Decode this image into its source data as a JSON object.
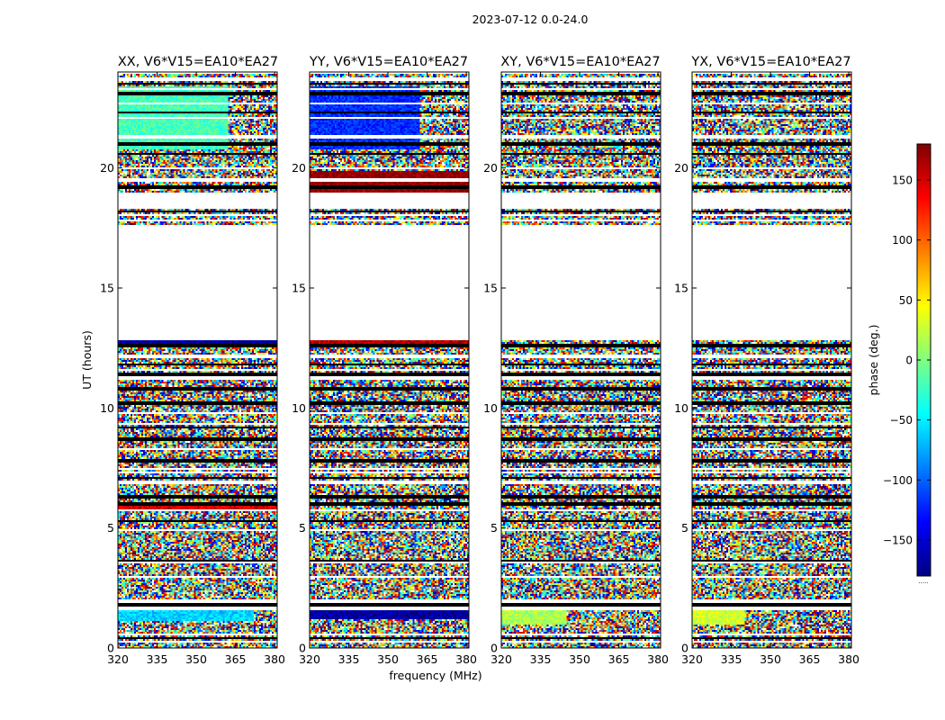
{
  "figure": {
    "title": "2023-07-12 0.0-24.0"
  },
  "chart_data": {
    "type": "heatmap",
    "title": "2023-07-12 0.0-24.0",
    "xlabel": "frequency (MHz)",
    "ylabel": "UT (hours)",
    "xlim": [
      320,
      381
    ],
    "ylim": [
      0,
      24
    ],
    "xticks": [
      320,
      335,
      350,
      365,
      380
    ],
    "yticks": [
      0,
      5,
      10,
      15,
      20
    ],
    "panels": [
      {
        "title": "XX, V6*V15=EA10*EA27",
        "pol": "XX"
      },
      {
        "title": "YY, V6*V15=EA10*EA27",
        "pol": "YY"
      },
      {
        "title": "XY, V6*V15=EA10*EA27",
        "pol": "XY"
      },
      {
        "title": "YX, V6*V15=EA10*EA27",
        "pol": "YX"
      }
    ],
    "colorbar": {
      "label": "phase (deg.)",
      "range": [
        -180,
        180
      ],
      "ticks": [
        -150,
        -100,
        -50,
        0,
        50,
        100,
        150
      ],
      "colormap": "jet",
      "under_label": "....."
    },
    "blank_bands_hours": [
      [
        12.8,
        17.6
      ],
      [
        18.3,
        19.0
      ],
      [
        23.95,
        24.0
      ]
    ],
    "flagged_lines_hours": [
      0.4,
      1.8,
      3.6,
      5.3,
      6.0,
      6.3,
      7.1,
      7.8,
      8.7,
      9.2,
      10.2,
      10.8,
      11.4,
      11.8,
      12.6,
      18.2,
      19.2,
      20.6,
      21.0,
      22.3,
      23.1,
      23.5
    ],
    "white_gaps_hours": [
      0.25,
      0.55,
      1.65,
      1.95,
      2.95,
      3.55,
      4.9,
      5.75,
      6.9,
      7.3,
      7.45,
      8.3,
      9.35,
      9.8,
      11.25,
      11.6,
      12.15,
      17.8,
      18.05,
      19.5,
      20.0,
      21.3,
      22.1,
      22.7,
      23.3,
      23.7
    ],
    "coherent_regions": [
      {
        "panel": "XX",
        "hours": [
          20.8,
          23.4
        ],
        "freq_mhz": [
          320,
          362
        ],
        "phase_deg": -20
      },
      {
        "panel": "XX",
        "hours": [
          1.1,
          1.8
        ],
        "freq_mhz": [
          320,
          372
        ],
        "phase_deg": -60
      },
      {
        "panel": "XX",
        "hours": [
          5.7,
          6.0
        ],
        "freq_mhz": [
          320,
          381
        ],
        "phase_deg": 150
      },
      {
        "panel": "XX",
        "hours": [
          12.5,
          12.8
        ],
        "freq_mhz": [
          320,
          381
        ],
        "phase_deg": -170
      },
      {
        "panel": "YY",
        "hours": [
          20.8,
          23.4
        ],
        "freq_mhz": [
          320,
          362
        ],
        "phase_deg": -120
      },
      {
        "panel": "YY",
        "hours": [
          22.4,
          22.9
        ],
        "freq_mhz": [
          320,
          362
        ],
        "phase_deg": 160
      },
      {
        "panel": "YY",
        "hours": [
          1.2,
          1.8
        ],
        "freq_mhz": [
          320,
          381
        ],
        "phase_deg": -170
      },
      {
        "panel": "YY",
        "hours": [
          1.2,
          1.6
        ],
        "freq_mhz": [
          355,
          381
        ],
        "phase_deg": 170
      },
      {
        "panel": "YY",
        "hours": [
          19.0,
          19.9
        ],
        "freq_mhz": [
          320,
          381
        ],
        "phase_deg": 175
      },
      {
        "panel": "YY",
        "hours": [
          12.5,
          12.8
        ],
        "freq_mhz": [
          320,
          381
        ],
        "phase_deg": 160
      },
      {
        "panel": "XY",
        "hours": [
          1.0,
          1.7
        ],
        "freq_mhz": [
          320,
          345
        ],
        "phase_deg": 15
      },
      {
        "panel": "YX",
        "hours": [
          1.0,
          1.7
        ],
        "freq_mhz": [
          320,
          340
        ],
        "phase_deg": 30
      }
    ]
  }
}
